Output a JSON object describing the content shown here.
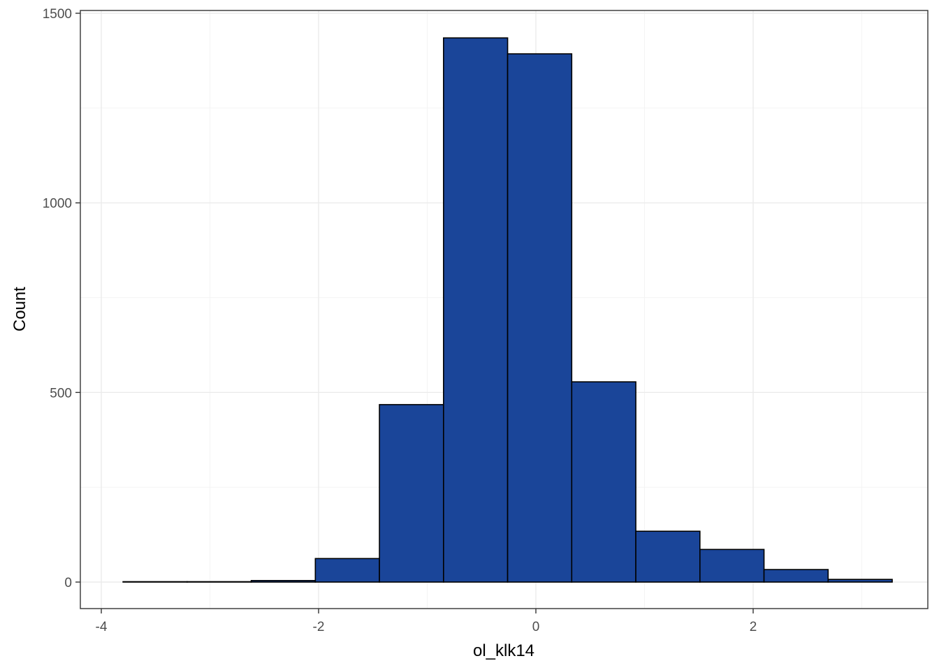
{
  "chart_data": {
    "type": "bar",
    "subtype": "histogram",
    "xlabel": "ol_klk14",
    "ylabel": "Count",
    "xlim": [
      -4.0,
      3.5
    ],
    "ylim": [
      -70,
      1505
    ],
    "x_ticks": [
      -4,
      -2,
      0,
      2
    ],
    "x_tick_labels": [
      "-4",
      "-2",
      "0",
      "2"
    ],
    "y_ticks": [
      0,
      500,
      1000,
      1500
    ],
    "y_tick_labels": [
      "0",
      "500",
      "1000",
      "1500"
    ],
    "bin_width": 0.59,
    "bins": [
      {
        "x0": -3.8,
        "x1": -3.21,
        "count": 1
      },
      {
        "x0": -3.21,
        "x1": -2.62,
        "count": 1
      },
      {
        "x0": -2.62,
        "x1": -2.03,
        "count": 4
      },
      {
        "x0": -2.03,
        "x1": -1.44,
        "count": 62
      },
      {
        "x0": -1.44,
        "x1": -0.85,
        "count": 468
      },
      {
        "x0": -0.85,
        "x1": -0.26,
        "count": 1435
      },
      {
        "x0": -0.26,
        "x1": 0.33,
        "count": 1393
      },
      {
        "x0": 0.33,
        "x1": 0.92,
        "count": 528
      },
      {
        "x0": 0.92,
        "x1": 1.51,
        "count": 134
      },
      {
        "x0": 1.51,
        "x1": 2.1,
        "count": 86
      },
      {
        "x0": 2.1,
        "x1": 2.69,
        "count": 33
      },
      {
        "x0": 2.69,
        "x1": 3.28,
        "count": 7
      }
    ],
    "grid": true,
    "legend": "none",
    "colors": {
      "bar_fill": "#1a4599",
      "bar_outline": "#000000",
      "grid": "#ebebeb",
      "background": "#ffffff"
    }
  }
}
